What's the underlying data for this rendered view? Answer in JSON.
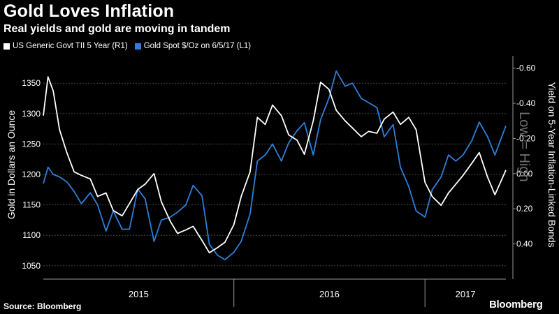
{
  "title": "Gold Loves Inflation",
  "subtitle": "Real yields and gold are moving in tandem",
  "source": "Source: Bloomberg",
  "brand": "Bloomberg",
  "colors": {
    "background": "#000000",
    "series_yield": "#ffffff",
    "series_gold": "#2f7fd8",
    "grid": "#444444",
    "annotation": "#6f6f6f"
  },
  "chart_data": {
    "type": "line",
    "legend_placement": "top-left",
    "grid": true,
    "left_axis": {
      "label": "Gold in Dollars an Ounce",
      "ticks": [
        "1350",
        "1300",
        "1250",
        "1200",
        "1150",
        "1100",
        "1050"
      ],
      "tick_values": [
        1350,
        1300,
        1250,
        1200,
        1150,
        1100,
        1050
      ],
      "range": [
        1028,
        1395
      ]
    },
    "right_axis": {
      "label": "Yield on 5-Year Inflation-Linked Bonds",
      "ticks": [
        "-0.60",
        "-0.40",
        "-0.20",
        "0.00",
        "0.20",
        "0.40"
      ],
      "tick_values": [
        -0.6,
        -0.4,
        -0.2,
        0.0,
        0.2,
        0.4
      ],
      "range": [
        0.6,
        -0.67
      ],
      "inverted": true
    },
    "x_axis": {
      "categories": [
        "2015",
        "2016",
        "2017"
      ],
      "range": [
        "2015-01-01",
        "2017-06-05"
      ]
    },
    "annotation": "Low = High",
    "series": [
      {
        "name": "US Generic Govt TII 5 Year  (R1)",
        "axis": "right",
        "x": [
          "2015-01-01",
          "2015-01-10",
          "2015-01-20",
          "2015-02-01",
          "2015-02-15",
          "2015-03-01",
          "2015-03-15",
          "2015-04-01",
          "2015-04-15",
          "2015-05-01",
          "2015-05-15",
          "2015-06-01",
          "2015-06-15",
          "2015-07-01",
          "2015-07-15",
          "2015-08-01",
          "2015-08-15",
          "2015-09-01",
          "2015-09-15",
          "2015-10-01",
          "2015-10-15",
          "2015-11-01",
          "2015-11-15",
          "2015-12-01",
          "2015-12-15",
          "2016-01-01",
          "2016-01-15",
          "2016-02-01",
          "2016-02-15",
          "2016-03-01",
          "2016-03-15",
          "2016-04-01",
          "2016-04-15",
          "2016-05-01",
          "2016-05-15",
          "2016-06-01",
          "2016-06-15",
          "2016-07-01",
          "2016-07-15",
          "2016-08-01",
          "2016-08-15",
          "2016-09-01",
          "2016-09-15",
          "2016-10-01",
          "2016-10-15",
          "2016-11-01",
          "2016-11-15",
          "2016-12-01",
          "2016-12-15",
          "2017-01-01",
          "2017-01-15",
          "2017-02-01",
          "2017-02-15",
          "2017-03-01",
          "2017-03-15",
          "2017-04-01",
          "2017-04-15",
          "2017-05-01",
          "2017-05-15",
          "2017-06-05"
        ],
        "values": [
          -0.33,
          -0.55,
          -0.47,
          -0.25,
          -0.12,
          -0.01,
          0.01,
          0.03,
          0.13,
          0.11,
          0.21,
          0.24,
          0.17,
          0.09,
          0.06,
          0.0,
          0.16,
          0.27,
          0.34,
          0.32,
          0.3,
          0.38,
          0.45,
          0.42,
          0.39,
          0.29,
          0.13,
          -0.01,
          -0.32,
          -0.28,
          -0.39,
          -0.33,
          -0.22,
          -0.19,
          -0.11,
          -0.3,
          -0.52,
          -0.48,
          -0.36,
          -0.3,
          -0.26,
          -0.21,
          -0.24,
          -0.23,
          -0.31,
          -0.35,
          -0.28,
          -0.32,
          -0.25,
          0.05,
          0.13,
          0.18,
          0.11,
          0.06,
          0.01,
          -0.06,
          -0.12,
          0.02,
          0.12,
          -0.02
        ]
      },
      {
        "name": "Gold Spot $/Oz  on 6/5/17 (L1)",
        "axis": "left",
        "x": [
          "2015-01-01",
          "2015-01-10",
          "2015-01-20",
          "2015-02-01",
          "2015-02-15",
          "2015-03-01",
          "2015-03-15",
          "2015-04-01",
          "2015-04-15",
          "2015-05-01",
          "2015-05-15",
          "2015-06-01",
          "2015-06-15",
          "2015-07-01",
          "2015-07-15",
          "2015-08-01",
          "2015-08-15",
          "2015-09-01",
          "2015-09-15",
          "2015-10-01",
          "2015-10-15",
          "2015-11-01",
          "2015-11-15",
          "2015-12-01",
          "2015-12-15",
          "2016-01-01",
          "2016-01-15",
          "2016-02-01",
          "2016-02-15",
          "2016-03-01",
          "2016-03-15",
          "2016-04-01",
          "2016-04-15",
          "2016-05-01",
          "2016-05-15",
          "2016-06-01",
          "2016-06-15",
          "2016-07-01",
          "2016-07-15",
          "2016-08-01",
          "2016-08-15",
          "2016-09-01",
          "2016-09-15",
          "2016-10-01",
          "2016-10-15",
          "2016-11-01",
          "2016-11-15",
          "2016-12-01",
          "2016-12-15",
          "2017-01-01",
          "2017-01-15",
          "2017-02-01",
          "2017-02-15",
          "2017-03-01",
          "2017-03-15",
          "2017-04-01",
          "2017-04-15",
          "2017-05-01",
          "2017-05-15",
          "2017-06-05"
        ],
        "values": [
          1185,
          1212,
          1200,
          1196,
          1188,
          1172,
          1152,
          1170,
          1150,
          1107,
          1140,
          1110,
          1110,
          1176,
          1160,
          1090,
          1125,
          1130,
          1138,
          1150,
          1182,
          1165,
          1085,
          1067,
          1060,
          1072,
          1090,
          1135,
          1222,
          1232,
          1250,
          1222,
          1252,
          1272,
          1285,
          1232,
          1290,
          1325,
          1370,
          1345,
          1350,
          1325,
          1318,
          1310,
          1262,
          1282,
          1212,
          1180,
          1140,
          1130,
          1175,
          1196,
          1232,
          1222,
          1232,
          1256,
          1286,
          1262,
          1232,
          1280
        ]
      }
    ]
  }
}
